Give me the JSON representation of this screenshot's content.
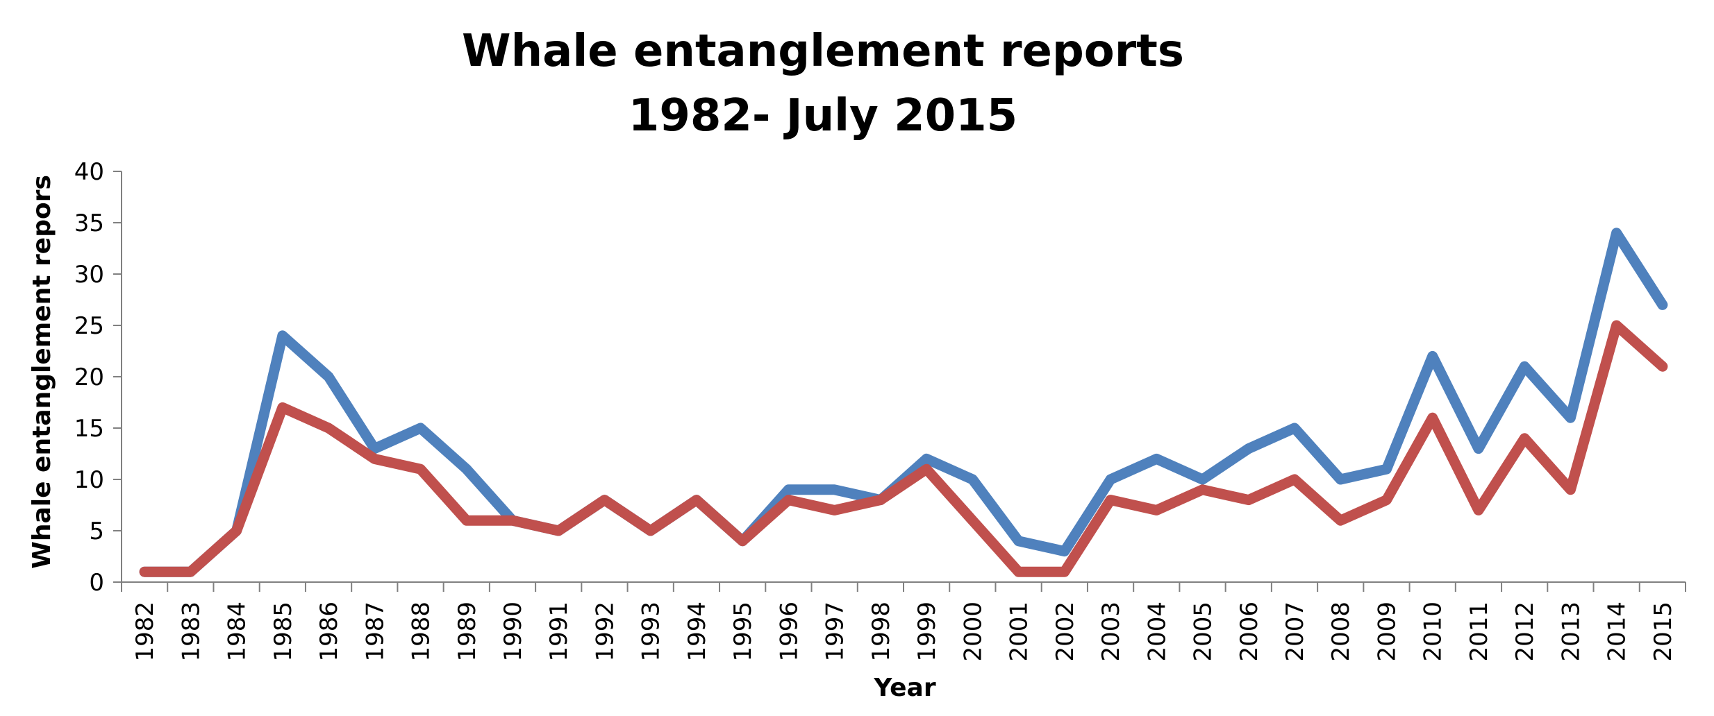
{
  "chart_data": {
    "type": "line",
    "title": "Whale entanglement reports",
    "subtitle": "1982- July 2015",
    "xlabel": "Year",
    "ylabel": "Whale entanglement repors",
    "ylim": [
      0,
      40
    ],
    "yticks": [
      "0",
      "5",
      "10",
      "15",
      "20",
      "25",
      "30",
      "35",
      "40"
    ],
    "grid": false,
    "legend": "none",
    "categories": [
      "1982",
      "1983",
      "1984",
      "1985",
      "1986",
      "1987",
      "1988",
      "1989",
      "1990",
      "1991",
      "1992",
      "1993",
      "1994",
      "1995",
      "1996",
      "1997",
      "1998",
      "1999",
      "2000",
      "2001",
      "2002",
      "2003",
      "2004",
      "2005",
      "2006",
      "2007",
      "2008",
      "2009",
      "2010",
      "2011",
      "2012",
      "2013",
      "2014",
      "2015"
    ],
    "series": [
      {
        "color": "#4F81BD",
        "values": [
          1,
          1,
          5,
          24,
          20,
          13,
          15,
          11,
          6,
          5,
          8,
          5,
          8,
          4,
          9,
          9,
          8,
          12,
          10,
          4,
          3,
          10,
          12,
          10,
          13,
          15,
          10,
          11,
          22,
          13,
          21,
          16,
          34,
          27
        ]
      },
      {
        "color": "#C0504D",
        "values": [
          1,
          1,
          5,
          17,
          15,
          12,
          11,
          6,
          6,
          5,
          8,
          5,
          8,
          4,
          8,
          7,
          8,
          11,
          6,
          1,
          1,
          8,
          7,
          9,
          8,
          10,
          6,
          8,
          16,
          7,
          14,
          9,
          25,
          21
        ]
      }
    ]
  }
}
